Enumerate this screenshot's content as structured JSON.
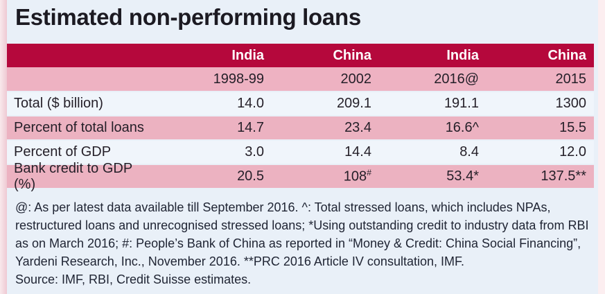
{
  "page": {
    "background_color": "#e9f0f8",
    "accent_color": "#b5083c",
    "pink_row_color": "#ecb2c1",
    "year_row_color": "#eeb2c2",
    "light_row_color": "#f0f5fb"
  },
  "title": "Estimated non-performing loans",
  "chart_data": {
    "type": "table",
    "title": "Estimated non-performing loans",
    "columns": [
      {
        "country": "India",
        "year": "1998-99"
      },
      {
        "country": "China",
        "year": "2002"
      },
      {
        "country": "India",
        "year": "2016@"
      },
      {
        "country": "China",
        "year": "2015"
      }
    ],
    "rows": [
      {
        "label": "Total ($ billion)",
        "values": [
          "14.0",
          "209.1",
          "191.1",
          "1300"
        ]
      },
      {
        "label": "Percent of total loans",
        "values": [
          "14.7",
          "23.4",
          "16.6^",
          "15.5"
        ]
      },
      {
        "label": "Percent of GDP",
        "values": [
          "3.0",
          "14.4",
          "8.4",
          "12.0"
        ]
      },
      {
        "label": "Bank credit to GDP (%)",
        "values": [
          "20.5",
          "108#",
          "53.4*",
          "137.5**"
        ]
      }
    ],
    "footnote": "@: As per latest data available till September 2016. ^: Total stressed loans, which includes NPAs, restructured loans and unrecognised stressed loans; *Using outstanding credit to industry data from RBI as on March 2016; #: People’s Bank of China as reported in “Money & Credit: China Social Financing”, Yardeni Research, Inc., November 2016. **PRC 2016 Article IV consultation, IMF.",
    "source": "Source: IMF, RBI, Credit Suisse estimates."
  }
}
